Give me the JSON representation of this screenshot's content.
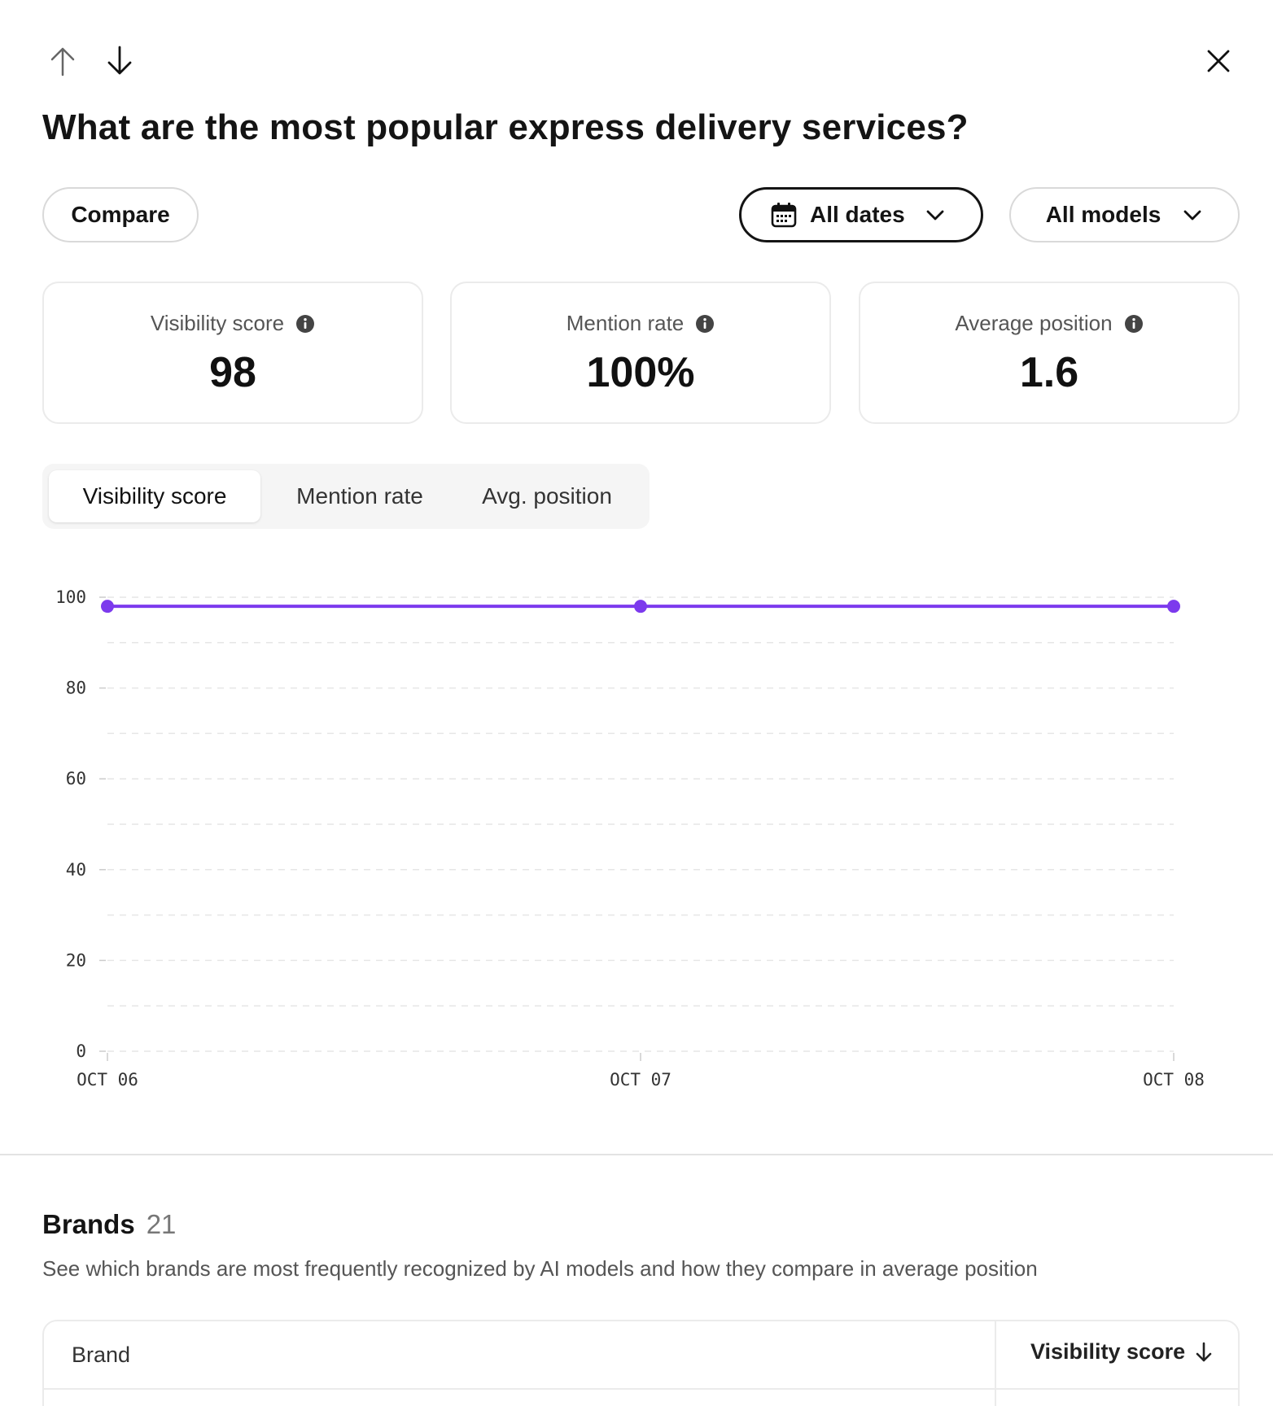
{
  "nav": {
    "up_icon": "arrow-up-icon",
    "down_icon": "arrow-down-icon",
    "close_icon": "close-icon"
  },
  "title": "What are the most popular express delivery services?",
  "toolbar": {
    "compare_label": "Compare",
    "dates_label": "All dates",
    "models_label": "All models"
  },
  "metrics": [
    {
      "label": "Visibility score",
      "value": "98"
    },
    {
      "label": "Mention rate",
      "value": "100%"
    },
    {
      "label": "Average position",
      "value": "1.6"
    }
  ],
  "tabs": [
    {
      "label": "Visibility score",
      "active": true
    },
    {
      "label": "Mention rate",
      "active": false
    },
    {
      "label": "Avg. position",
      "active": false
    }
  ],
  "chart_data": {
    "type": "line",
    "x": [
      "OCT 06",
      "OCT 07",
      "OCT 08"
    ],
    "series": [
      {
        "values": [
          98,
          98,
          98
        ],
        "color": "#7c3aed"
      }
    ],
    "ylim": [
      0,
      100
    ],
    "yticks": [
      0,
      20,
      40,
      60,
      80,
      100
    ],
    "grid": true,
    "title": "",
    "xlabel": "",
    "ylabel": ""
  },
  "brands": {
    "title": "Brands",
    "count": "21",
    "description": "See which brands are most frequently recognized by AI models and how they compare in average position",
    "columns": {
      "brand": "Brand",
      "score": "Visibility score"
    }
  },
  "colors": {
    "accent": "#7c3aed",
    "text": "#141414",
    "muted": "#555555",
    "border": "#ebebeb"
  }
}
